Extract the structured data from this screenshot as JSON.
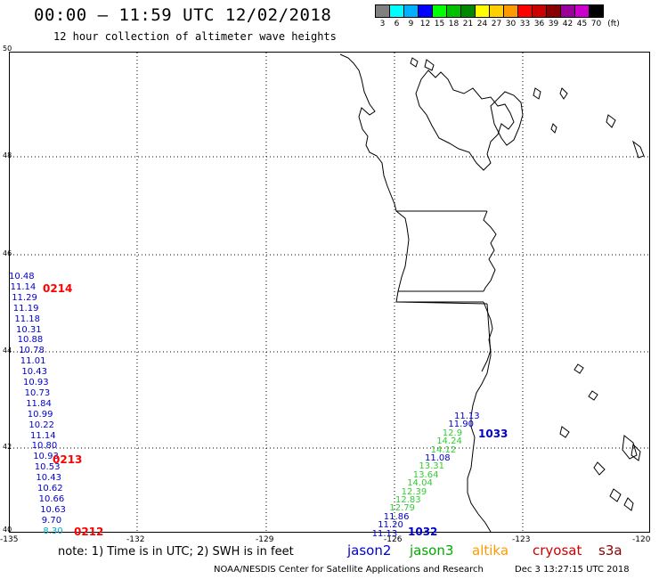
{
  "header": {
    "title": "00:00 – 11:59 UTC 12/02/2018",
    "subtitle": "12 hour collection of altimeter wave heights"
  },
  "color_scale": {
    "unit": "(ft)",
    "bins": [
      {
        "label": "3",
        "color": "#808080"
      },
      {
        "label": "6",
        "color": "#00ffff"
      },
      {
        "label": "9",
        "color": "#00b0ff"
      },
      {
        "label": "12",
        "color": "#0000ff"
      },
      {
        "label": "15",
        "color": "#00ff00"
      },
      {
        "label": "18",
        "color": "#00c000"
      },
      {
        "label": "21",
        "color": "#008800"
      },
      {
        "label": "24",
        "color": "#ffff00"
      },
      {
        "label": "27",
        "color": "#ffd000"
      },
      {
        "label": "30",
        "color": "#ff9900"
      },
      {
        "label": "33",
        "color": "#ff0000"
      },
      {
        "label": "36",
        "color": "#cc0000"
      },
      {
        "label": "39",
        "color": "#880000"
      },
      {
        "label": "42",
        "color": "#990099"
      },
      {
        "label": "45",
        "color": "#cc00cc"
      },
      {
        "label": "70",
        "color": "#000000"
      }
    ]
  },
  "map": {
    "lat_labels": [
      "50",
      "48",
      "46",
      "44",
      "42",
      "40"
    ],
    "lon_labels": [
      "-135",
      "-132",
      "-129",
      "-126",
      "-123",
      "-120"
    ]
  },
  "passes": [
    {
      "label": "0214",
      "color": "#ff0000"
    },
    {
      "label": "0213",
      "color": "#ff0000"
    },
    {
      "label": "0212",
      "color": "#ff0000"
    },
    {
      "label": "1033",
      "color": "#0000cc"
    },
    {
      "label": "1032",
      "color": "#0000cc"
    }
  ],
  "track_west": {
    "values": [
      "10.48",
      "11.14",
      "11.29",
      "11.19",
      "11.18",
      "10.31",
      "10.88",
      "10.78",
      "11.01",
      "10.43",
      "10.93",
      "10.73",
      "11.84",
      "10.99",
      "10.22",
      "11.14",
      "10.80",
      "10.93",
      "10.53",
      "10.43",
      "10.62",
      "10.66",
      "10.63",
      "9.70",
      "8.30"
    ],
    "colors": [
      "#0000cc",
      "#0000cc",
      "#0000cc",
      "#0000cc",
      "#0000cc",
      "#0000cc",
      "#0000cc",
      "#0000cc",
      "#0000cc",
      "#0000cc",
      "#0000cc",
      "#0000cc",
      "#0000cc",
      "#0000cc",
      "#0000cc",
      "#0000cc",
      "#0000cc",
      "#0000cc",
      "#0000cc",
      "#0000cc",
      "#0000cc",
      "#0000cc",
      "#0000cc",
      "#0000cc",
      "#00aacc"
    ]
  },
  "track_east": {
    "values": [
      "11.13",
      "11.90",
      "12.9",
      "14.24",
      "14.12",
      "11.08",
      "13.31",
      "13.64",
      "14.04",
      "12.39",
      "12.83",
      "12.79",
      "11.86",
      "11.20",
      "11.13"
    ],
    "colors": [
      "#0000cc",
      "#0000cc",
      "#33cc33",
      "#33cc33",
      "#33cc33",
      "#0000cc",
      "#33cc33",
      "#33cc33",
      "#33cc33",
      "#33cc33",
      "#33cc33",
      "#33cc33",
      "#0000cc",
      "#0000cc",
      "#0000cc"
    ]
  },
  "legend": {
    "note": "note: 1) Time is in UTC; 2) SWH is in feet",
    "missions": [
      {
        "name": "jason2",
        "color": "#0000cc"
      },
      {
        "name": "jason3",
        "color": "#00aa00"
      },
      {
        "name": "altika",
        "color": "#ff9900"
      },
      {
        "name": "cryosat",
        "color": "#cc0000"
      },
      {
        "name": "s3a",
        "color": "#880000"
      }
    ]
  },
  "footer": {
    "credit": "NOAA/NESDIS Center for Satellite Applications and Research",
    "timestamp": "Dec  3 13:27:15 UTC 2018"
  }
}
